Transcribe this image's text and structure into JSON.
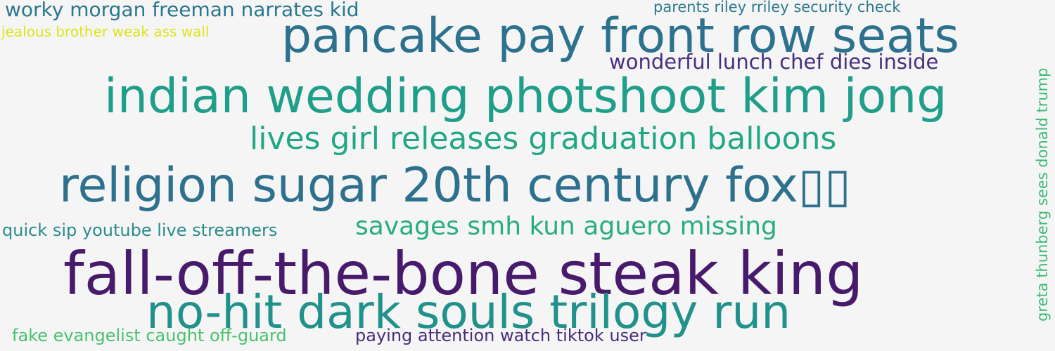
{
  "phrases": [
    {
      "text": "worky morgan freeman narrates kid",
      "color": "#2a768e"
    },
    {
      "text": "parents riley rriley security check",
      "color": "#2a788e"
    },
    {
      "text": "jealous brother weak ass wall",
      "color": "#dde318"
    },
    {
      "text": "pancake pay front row seats",
      "color": "#2c728e"
    },
    {
      "text": "wonderful lunch chef dies inside",
      "color": "#46307e"
    },
    {
      "text": "indian wedding photshoot kim jong",
      "color": "#1f9e89"
    },
    {
      "text": "lives girl releases graduation balloons",
      "color": "#22a785"
    },
    {
      "text": "religion sugar 20th century fox▯▯",
      "color": "#2d718e"
    },
    {
      "text": "quick sip youtube live streamers",
      "color": "#2b8c8c"
    },
    {
      "text": "savages smh kun aguero missing",
      "color": "#27ad81"
    },
    {
      "text": "fall-off-the-bone steak king",
      "color": "#481a6c"
    },
    {
      "text": "no-hit dark souls trilogy run",
      "color": "#21918c"
    },
    {
      "text": "fake evangelist caught off-guard",
      "color": "#4ac16d"
    },
    {
      "text": "paying attention watch tiktok user",
      "color": "#472d7b"
    },
    {
      "text": "greta thunberg sees donald trump",
      "color": "#3bbb75"
    }
  ]
}
